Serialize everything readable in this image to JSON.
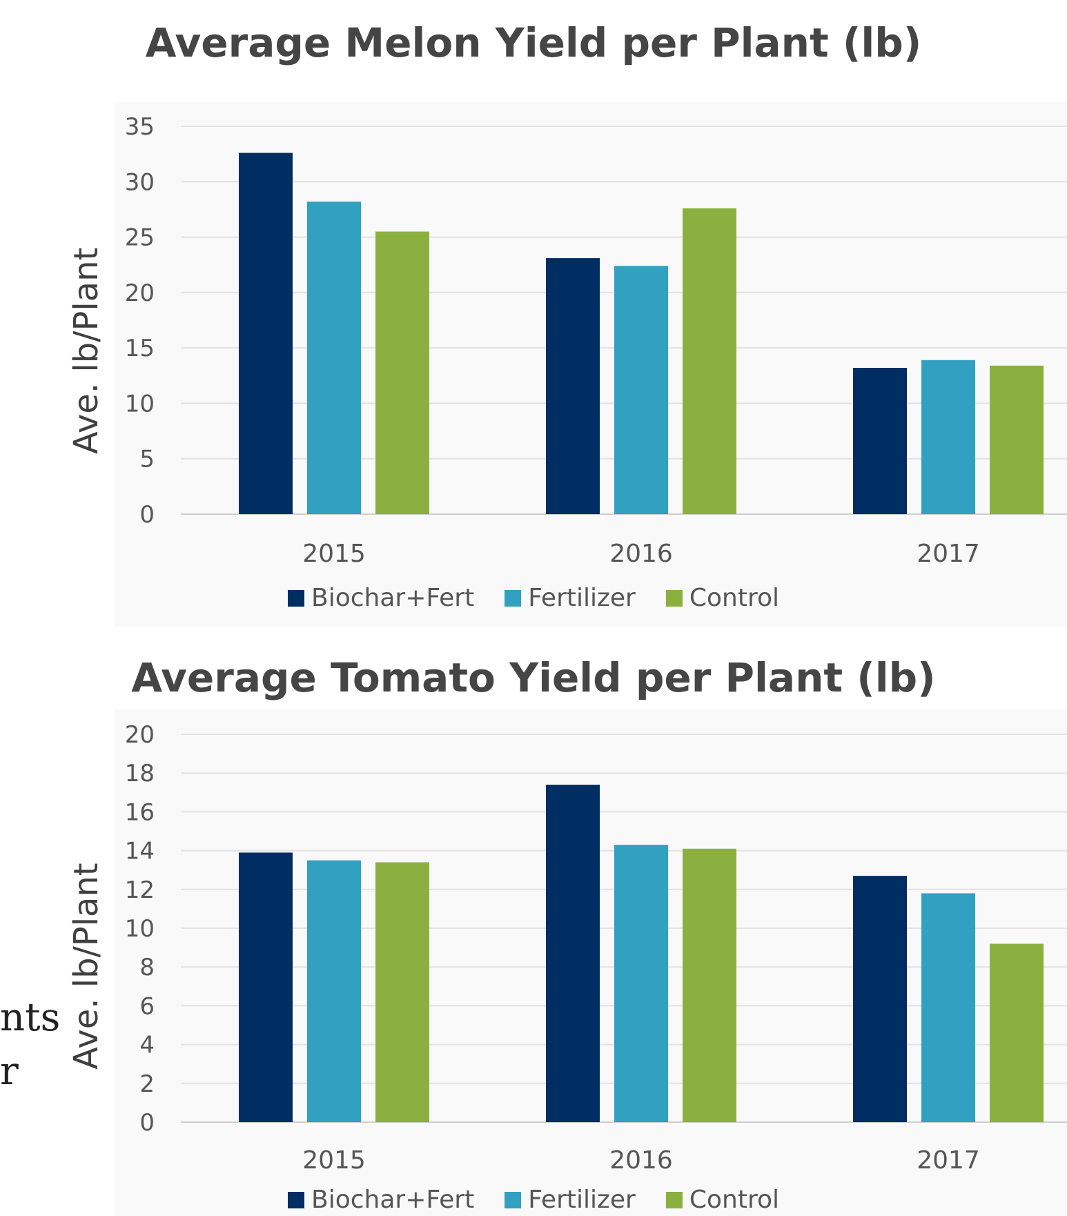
{
  "side_text": [
    "nts",
    "r"
  ],
  "chart_data": [
    {
      "type": "bar",
      "title": "Average Melon Yield per Plant (lb)",
      "ylabel": "Ave. lb/Plant",
      "xlabel": "",
      "categories": [
        "2015",
        "2016",
        "2017"
      ],
      "ylim": [
        0,
        35
      ],
      "yticks": [
        0,
        5,
        10,
        15,
        20,
        25,
        30,
        35
      ],
      "grid": true,
      "legend_position": "bottom",
      "series": [
        {
          "name": "Biochar+Fert",
          "color": "#002d62",
          "values": [
            32.6,
            23.1,
            13.2
          ]
        },
        {
          "name": "Fertilizer",
          "color": "#31a0c1",
          "values": [
            28.2,
            22.4,
            13.9
          ]
        },
        {
          "name": "Control",
          "color": "#8bb040",
          "values": [
            25.5,
            27.6,
            13.4
          ]
        }
      ]
    },
    {
      "type": "bar",
      "title": "Average Tomato Yield per Plant (lb)",
      "ylabel": "Ave. lb/Plant",
      "xlabel": "",
      "categories": [
        "2015",
        "2016",
        "2017"
      ],
      "ylim": [
        0,
        20
      ],
      "yticks": [
        0,
        2,
        4,
        6,
        8,
        10,
        12,
        14,
        16,
        18,
        20
      ],
      "grid": true,
      "legend_position": "bottom",
      "series": [
        {
          "name": "Biochar+Fert",
          "color": "#002d62",
          "values": [
            13.9,
            17.4,
            12.7
          ]
        },
        {
          "name": "Fertilizer",
          "color": "#31a0c1",
          "values": [
            13.5,
            14.3,
            11.8
          ]
        },
        {
          "name": "Control",
          "color": "#8bb040",
          "values": [
            13.4,
            14.1,
            9.2
          ]
        }
      ]
    }
  ]
}
